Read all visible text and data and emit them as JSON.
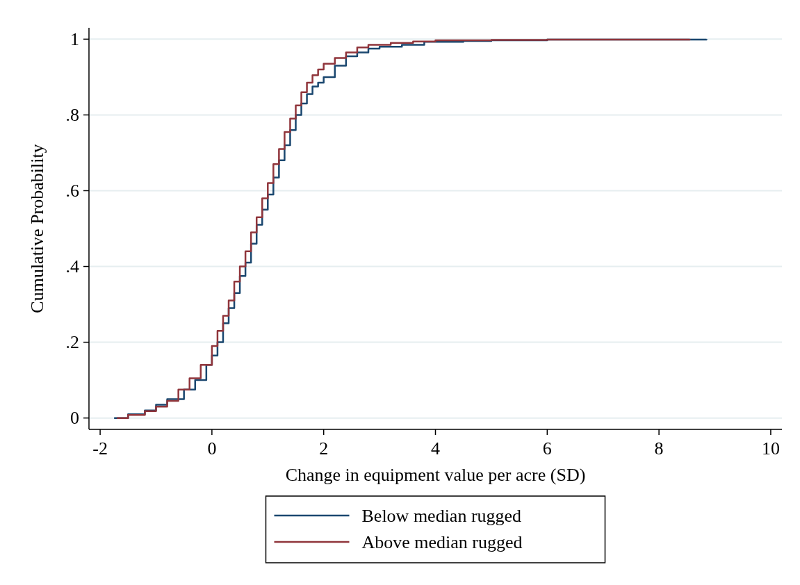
{
  "chart_data": {
    "type": "step",
    "xlabel": "Change in equipment value per acre (SD)",
    "ylabel": "Cumulative Probability",
    "xlim": [
      -2.2,
      10.2
    ],
    "ylim": [
      -0.03,
      1.03
    ],
    "xticks": [
      -2,
      0,
      2,
      4,
      6,
      8,
      10
    ],
    "yticks": [
      0,
      {
        "value": 0.2,
        "label": ".2"
      },
      {
        "value": 0.4,
        "label": ".4"
      },
      {
        "value": 0.6,
        "label": ".6"
      },
      {
        "value": 0.8,
        "label": ".8"
      },
      1
    ],
    "grid": "y",
    "legend": "bottom",
    "line_style": "solid",
    "marker": "none",
    "series": [
      {
        "name": "Below median rugged",
        "color": "#1a476f",
        "x": [
          -1.75,
          -1.5,
          -1.2,
          -1.0,
          -0.8,
          -0.5,
          -0.3,
          -0.1,
          0,
          0.1,
          0.2,
          0.3,
          0.4,
          0.5,
          0.6,
          0.7,
          0.8,
          0.9,
          1.0,
          1.1,
          1.2,
          1.3,
          1.4,
          1.5,
          1.6,
          1.7,
          1.8,
          1.9,
          2.0,
          2.2,
          2.4,
          2.6,
          2.8,
          3.0,
          3.4,
          3.8,
          4.5,
          5,
          6,
          8.85
        ],
        "values": [
          0,
          0.01,
          0.02,
          0.035,
          0.05,
          0.075,
          0.1,
          0.14,
          0.165,
          0.2,
          0.25,
          0.29,
          0.33,
          0.375,
          0.41,
          0.46,
          0.51,
          0.55,
          0.59,
          0.635,
          0.68,
          0.72,
          0.76,
          0.8,
          0.83,
          0.855,
          0.875,
          0.885,
          0.9,
          0.93,
          0.955,
          0.965,
          0.975,
          0.98,
          0.985,
          0.993,
          0.995,
          0.997,
          0.999,
          1
        ]
      },
      {
        "name": "Above median rugged",
        "color": "#90353b",
        "x": [
          -1.7,
          -1.5,
          -1.2,
          -1.0,
          -0.8,
          -0.6,
          -0.4,
          -0.2,
          0,
          0.1,
          0.2,
          0.3,
          0.4,
          0.5,
          0.6,
          0.7,
          0.8,
          0.9,
          1.0,
          1.1,
          1.2,
          1.3,
          1.4,
          1.5,
          1.6,
          1.7,
          1.8,
          1.9,
          2.0,
          2.2,
          2.4,
          2.6,
          2.8,
          3.2,
          3.6,
          4.0,
          5,
          6,
          8.55
        ],
        "values": [
          0,
          0.008,
          0.018,
          0.03,
          0.045,
          0.075,
          0.105,
          0.14,
          0.19,
          0.23,
          0.27,
          0.31,
          0.36,
          0.4,
          0.44,
          0.49,
          0.53,
          0.58,
          0.62,
          0.67,
          0.71,
          0.755,
          0.79,
          0.825,
          0.86,
          0.885,
          0.905,
          0.92,
          0.935,
          0.95,
          0.965,
          0.978,
          0.985,
          0.99,
          0.994,
          0.997,
          0.998,
          0.999,
          1
        ]
      }
    ]
  }
}
